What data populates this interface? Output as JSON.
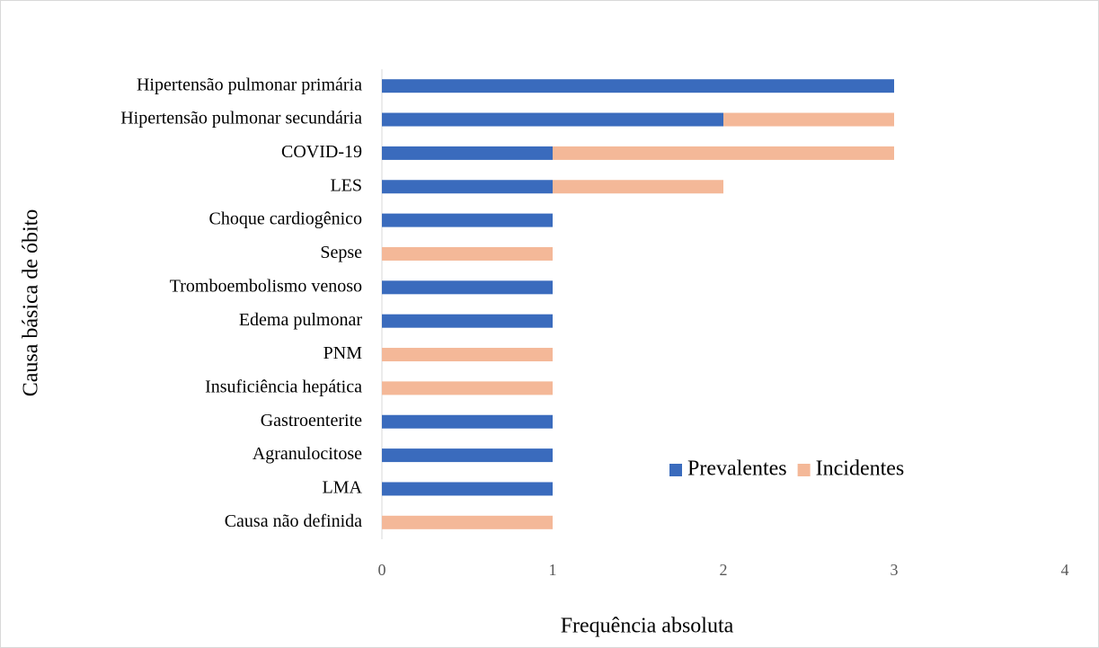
{
  "chart_data": {
    "type": "stacked-barh",
    "x_label": "Frequência absoluta",
    "y_label": "Causa básica de óbito",
    "categories": [
      "Hipertensão pulmonar primária",
      "Hipertensão pulmonar secundária",
      "COVID-19",
      "LES",
      "Choque cardiogênico",
      "Sepse",
      "Tromboembolismo venoso",
      "Edema pulmonar",
      "PNM",
      "Insuficiência hepática",
      "Gastroenterite",
      "Agranulocitose",
      "LMA",
      "Causa não definida"
    ],
    "series": [
      {
        "name": "Prevalentes",
        "color": "#3a6bbd",
        "values": [
          3,
          2,
          1,
          1,
          1,
          0,
          1,
          1,
          0,
          0,
          1,
          1,
          1,
          0
        ]
      },
      {
        "name": "Incidentes",
        "color": "#f4b898",
        "values": [
          0,
          1,
          2,
          1,
          0,
          1,
          0,
          0,
          1,
          1,
          0,
          0,
          0,
          1
        ]
      }
    ],
    "xlim": [
      0,
      4
    ],
    "xticks": [
      0,
      1,
      2,
      3,
      4
    ],
    "grid": false,
    "legend": "lower-right"
  }
}
